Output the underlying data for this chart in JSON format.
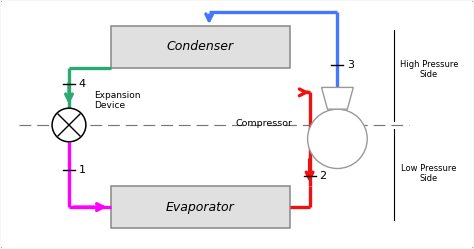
{
  "bg_color": "#faf5f5",
  "border_color": "#cc2222",
  "condenser_label": "Condenser",
  "evaporator_label": "Evaporator",
  "expansion_label": "Expansion\nDevice",
  "compressor_label": "Compressor",
  "high_pressure_label": "High Pressure\nSide",
  "low_pressure_label": "Low Pressure\nSide",
  "green_color": "#2aaa72",
  "magenta_color": "#ff00ff",
  "red_color": "#ee1111",
  "blue_color": "#4477ff",
  "box_face": "#e0e0e0",
  "box_edge": "#888888",
  "dash_color": "#777777",
  "figsize": [
    4.74,
    2.49
  ],
  "dpi": 100,
  "xlim": [
    0,
    4.74
  ],
  "ylim": [
    0,
    2.49
  ]
}
